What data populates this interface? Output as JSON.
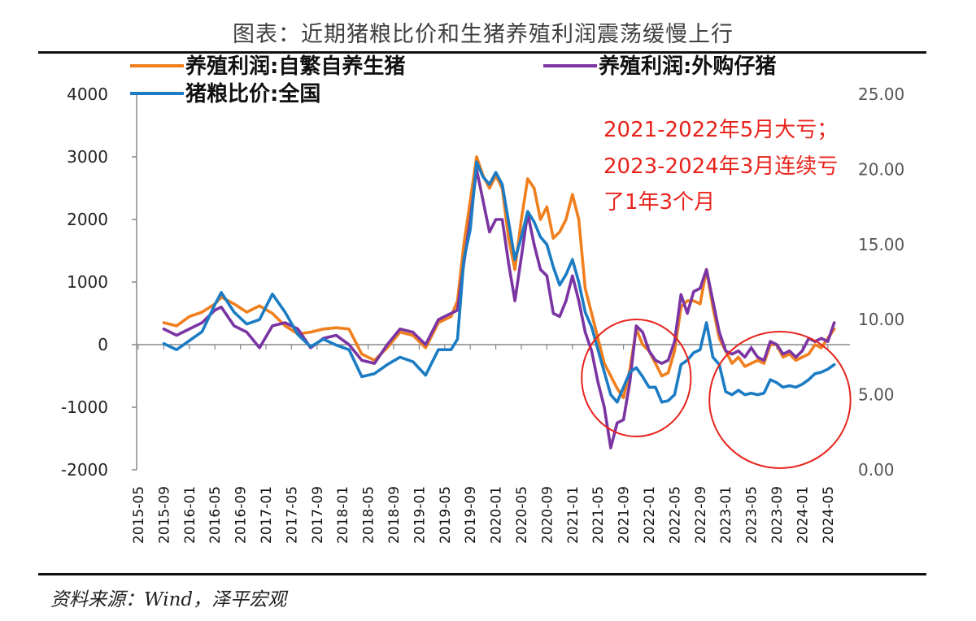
{
  "title": "图表：近期猪粮比价和生猪养殖利润震荡缓慢上行",
  "source": "资料来源：Wind，泽平宏观",
  "chart_data": {
    "type": "line",
    "title": "图表：近期猪粮比价和生猪养殖利润震荡缓慢上行",
    "xlabel": "",
    "ylabel": "",
    "x_tick_labels": [
      "2015-05",
      "2015-09",
      "2016-01",
      "2016-05",
      "2016-09",
      "2017-01",
      "2017-05",
      "2017-09",
      "2018-01",
      "2018-05",
      "2018-09",
      "2019-01",
      "2019-05",
      "2019-09",
      "2020-01",
      "2020-05",
      "2020-09",
      "2021-01",
      "2021-05",
      "2021-09",
      "2022-01",
      "2022-05",
      "2022-09",
      "2023-01",
      "2023-05",
      "2023-09",
      "2024-01",
      "2024-05"
    ],
    "y_left": {
      "ylim": [
        -2000,
        4000
      ],
      "ticks": [
        "-2000",
        "-1000",
        "0",
        "1000",
        "2000",
        "3000",
        "4000"
      ]
    },
    "y_right": {
      "ylim": [
        0,
        25
      ],
      "ticks": [
        "0.00",
        "5.00",
        "10.00",
        "15.00",
        "20.00",
        "25.00"
      ]
    },
    "grid": false,
    "legend_position": "top",
    "series": [
      {
        "name": "养殖利润:自繁自养生猪",
        "axis": "left",
        "color": "#f07f1e",
        "points": [
          [
            "2015-09",
            350
          ],
          [
            "2015-11",
            300
          ],
          [
            "2016-01",
            450
          ],
          [
            "2016-03",
            520
          ],
          [
            "2016-05",
            650
          ],
          [
            "2016-06",
            760
          ],
          [
            "2016-08",
            650
          ],
          [
            "2016-10",
            520
          ],
          [
            "2016-12",
            620
          ],
          [
            "2017-02",
            500
          ],
          [
            "2017-04",
            300
          ],
          [
            "2017-06",
            170
          ],
          [
            "2017-08",
            200
          ],
          [
            "2017-10",
            250
          ],
          [
            "2017-12",
            270
          ],
          [
            "2018-02",
            250
          ],
          [
            "2018-04",
            -150
          ],
          [
            "2018-06",
            -250
          ],
          [
            "2018-08",
            -50
          ],
          [
            "2018-10",
            200
          ],
          [
            "2018-12",
            150
          ],
          [
            "2019-02",
            -50
          ],
          [
            "2019-04",
            350
          ],
          [
            "2019-06",
            450
          ],
          [
            "2019-07",
            700
          ],
          [
            "2019-08",
            1600
          ],
          [
            "2019-09",
            2300
          ],
          [
            "2019-10",
            3000
          ],
          [
            "2019-11",
            2700
          ],
          [
            "2019-12",
            2500
          ],
          [
            "2020-01",
            2700
          ],
          [
            "2020-02",
            2500
          ],
          [
            "2020-03",
            1700
          ],
          [
            "2020-04",
            1200
          ],
          [
            "2020-05",
            2000
          ],
          [
            "2020-06",
            2650
          ],
          [
            "2020-07",
            2500
          ],
          [
            "2020-08",
            2000
          ],
          [
            "2020-09",
            2200
          ],
          [
            "2020-10",
            1700
          ],
          [
            "2020-11",
            1800
          ],
          [
            "2020-12",
            2000
          ],
          [
            "2021-01",
            2400
          ],
          [
            "2021-02",
            2000
          ],
          [
            "2021-03",
            900
          ],
          [
            "2021-04",
            500
          ],
          [
            "2021-05",
            100
          ],
          [
            "2021-06",
            -300
          ],
          [
            "2021-07",
            -500
          ],
          [
            "2021-08",
            -700
          ],
          [
            "2021-09",
            -850
          ],
          [
            "2021-10",
            -400
          ],
          [
            "2021-11",
            250
          ],
          [
            "2021-12",
            0
          ],
          [
            "2022-01",
            -100
          ],
          [
            "2022-02",
            -300
          ],
          [
            "2022-03",
            -500
          ],
          [
            "2022-04",
            -450
          ],
          [
            "2022-05",
            -100
          ],
          [
            "2022-06",
            600
          ],
          [
            "2022-07",
            700
          ],
          [
            "2022-08",
            700
          ],
          [
            "2022-09",
            650
          ],
          [
            "2022-10",
            1200
          ],
          [
            "2022-11",
            600
          ],
          [
            "2022-12",
            100
          ],
          [
            "2023-01",
            -100
          ],
          [
            "2023-02",
            -300
          ],
          [
            "2023-03",
            -200
          ],
          [
            "2023-04",
            -350
          ],
          [
            "2023-05",
            -300
          ],
          [
            "2023-06",
            -250
          ],
          [
            "2023-07",
            -300
          ],
          [
            "2023-08",
            0
          ],
          [
            "2023-09",
            0
          ],
          [
            "2023-10",
            -200
          ],
          [
            "2023-11",
            -150
          ],
          [
            "2023-12",
            -250
          ],
          [
            "2024-01",
            -200
          ],
          [
            "2024-02",
            -150
          ],
          [
            "2024-03",
            0
          ],
          [
            "2024-04",
            -50
          ],
          [
            "2024-05",
            100
          ],
          [
            "2024-06",
            250
          ]
        ]
      },
      {
        "name": "养殖利润:外购仔猪",
        "axis": "left",
        "color": "#7b35a3",
        "points": [
          [
            "2015-09",
            250
          ],
          [
            "2015-11",
            150
          ],
          [
            "2016-01",
            250
          ],
          [
            "2016-03",
            350
          ],
          [
            "2016-05",
            550
          ],
          [
            "2016-06",
            600
          ],
          [
            "2016-08",
            300
          ],
          [
            "2016-10",
            200
          ],
          [
            "2016-12",
            -50
          ],
          [
            "2017-02",
            300
          ],
          [
            "2017-04",
            350
          ],
          [
            "2017-06",
            250
          ],
          [
            "2017-08",
            -50
          ],
          [
            "2017-10",
            100
          ],
          [
            "2017-12",
            150
          ],
          [
            "2018-02",
            0
          ],
          [
            "2018-04",
            -250
          ],
          [
            "2018-06",
            -300
          ],
          [
            "2018-08",
            0
          ],
          [
            "2018-10",
            250
          ],
          [
            "2018-12",
            200
          ],
          [
            "2019-02",
            0
          ],
          [
            "2019-04",
            400
          ],
          [
            "2019-06",
            500
          ],
          [
            "2019-07",
            550
          ],
          [
            "2019-08",
            1300
          ],
          [
            "2019-09",
            2000
          ],
          [
            "2019-10",
            2800
          ],
          [
            "2019-11",
            2300
          ],
          [
            "2019-12",
            1800
          ],
          [
            "2020-01",
            2000
          ],
          [
            "2020-02",
            2000
          ],
          [
            "2020-03",
            1300
          ],
          [
            "2020-04",
            700
          ],
          [
            "2020-05",
            1400
          ],
          [
            "2020-06",
            2100
          ],
          [
            "2020-07",
            1600
          ],
          [
            "2020-08",
            1200
          ],
          [
            "2020-09",
            1100
          ],
          [
            "2020-10",
            500
          ],
          [
            "2020-11",
            450
          ],
          [
            "2020-12",
            700
          ],
          [
            "2021-01",
            1100
          ],
          [
            "2021-02",
            700
          ],
          [
            "2021-03",
            200
          ],
          [
            "2021-04",
            -100
          ],
          [
            "2021-05",
            -600
          ],
          [
            "2021-06",
            -1000
          ],
          [
            "2021-07",
            -1650
          ],
          [
            "2021-08",
            -1250
          ],
          [
            "2021-09",
            -1200
          ],
          [
            "2021-10",
            -600
          ],
          [
            "2021-11",
            300
          ],
          [
            "2021-12",
            200
          ],
          [
            "2022-01",
            -100
          ],
          [
            "2022-02",
            -250
          ],
          [
            "2022-03",
            -300
          ],
          [
            "2022-04",
            -250
          ],
          [
            "2022-05",
            50
          ],
          [
            "2022-06",
            800
          ],
          [
            "2022-07",
            500
          ],
          [
            "2022-08",
            850
          ],
          [
            "2022-09",
            900
          ],
          [
            "2022-10",
            1200
          ],
          [
            "2022-11",
            700
          ],
          [
            "2022-12",
            200
          ],
          [
            "2023-01",
            -100
          ],
          [
            "2023-02",
            -150
          ],
          [
            "2023-03",
            -100
          ],
          [
            "2023-04",
            -200
          ],
          [
            "2023-05",
            -50
          ],
          [
            "2023-06",
            -200
          ],
          [
            "2023-07",
            -250
          ],
          [
            "2023-08",
            50
          ],
          [
            "2023-09",
            0
          ],
          [
            "2023-10",
            -150
          ],
          [
            "2023-11",
            -100
          ],
          [
            "2023-12",
            -200
          ],
          [
            "2024-01",
            -100
          ],
          [
            "2024-02",
            100
          ],
          [
            "2024-03",
            50
          ],
          [
            "2024-04",
            100
          ],
          [
            "2024-05",
            50
          ],
          [
            "2024-06",
            350
          ]
        ]
      },
      {
        "name": "猪粮比价:全国",
        "axis": "right",
        "color": "#1c7cc3",
        "points": [
          [
            "2015-09",
            8.4
          ],
          [
            "2015-11",
            8.0
          ],
          [
            "2016-01",
            8.6
          ],
          [
            "2016-03",
            9.2
          ],
          [
            "2016-05",
            11.0
          ],
          [
            "2016-06",
            11.8
          ],
          [
            "2016-08",
            10.5
          ],
          [
            "2016-10",
            9.7
          ],
          [
            "2016-12",
            10.0
          ],
          [
            "2017-02",
            11.7
          ],
          [
            "2017-04",
            10.5
          ],
          [
            "2017-06",
            9.0
          ],
          [
            "2017-08",
            8.2
          ],
          [
            "2017-10",
            8.7
          ],
          [
            "2017-12",
            8.3
          ],
          [
            "2018-02",
            8.0
          ],
          [
            "2018-04",
            6.2
          ],
          [
            "2018-06",
            6.4
          ],
          [
            "2018-08",
            7.0
          ],
          [
            "2018-10",
            7.5
          ],
          [
            "2018-12",
            7.2
          ],
          [
            "2019-02",
            6.3
          ],
          [
            "2019-04",
            8.0
          ],
          [
            "2019-06",
            8.0
          ],
          [
            "2019-07",
            8.7
          ],
          [
            "2019-08",
            14.0
          ],
          [
            "2019-09",
            16.0
          ],
          [
            "2019-10",
            20.5
          ],
          [
            "2019-11",
            19.5
          ],
          [
            "2019-12",
            19.0
          ],
          [
            "2020-01",
            19.8
          ],
          [
            "2020-02",
            19.0
          ],
          [
            "2020-03",
            16.5
          ],
          [
            "2020-04",
            14.0
          ],
          [
            "2020-05",
            15.5
          ],
          [
            "2020-06",
            17.2
          ],
          [
            "2020-07",
            16.5
          ],
          [
            "2020-08",
            15.5
          ],
          [
            "2020-09",
            15.0
          ],
          [
            "2020-10",
            13.5
          ],
          [
            "2020-11",
            12.3
          ],
          [
            "2020-12",
            13.0
          ],
          [
            "2021-01",
            14.0
          ],
          [
            "2021-02",
            12.5
          ],
          [
            "2021-03",
            10.5
          ],
          [
            "2021-04",
            9.5
          ],
          [
            "2021-05",
            8.0
          ],
          [
            "2021-06",
            6.5
          ],
          [
            "2021-07",
            5.0
          ],
          [
            "2021-08",
            4.5
          ],
          [
            "2021-09",
            5.5
          ],
          [
            "2021-10",
            6.5
          ],
          [
            "2021-11",
            6.8
          ],
          [
            "2021-12",
            6.2
          ],
          [
            "2022-01",
            5.5
          ],
          [
            "2022-02",
            5.5
          ],
          [
            "2022-03",
            4.5
          ],
          [
            "2022-04",
            4.6
          ],
          [
            "2022-05",
            5.0
          ],
          [
            "2022-06",
            7.0
          ],
          [
            "2022-07",
            7.3
          ],
          [
            "2022-08",
            7.8
          ],
          [
            "2022-09",
            8.0
          ],
          [
            "2022-10",
            9.8
          ],
          [
            "2022-11",
            7.5
          ],
          [
            "2022-12",
            7.0
          ],
          [
            "2023-01",
            5.2
          ],
          [
            "2023-02",
            5.0
          ],
          [
            "2023-03",
            5.3
          ],
          [
            "2023-04",
            5.0
          ],
          [
            "2023-05",
            5.1
          ],
          [
            "2023-06",
            5.0
          ],
          [
            "2023-07",
            5.1
          ],
          [
            "2023-08",
            6.0
          ],
          [
            "2023-09",
            5.8
          ],
          [
            "2023-10",
            5.5
          ],
          [
            "2023-11",
            5.6
          ],
          [
            "2023-12",
            5.5
          ],
          [
            "2024-01",
            5.7
          ],
          [
            "2024-02",
            6.0
          ],
          [
            "2024-03",
            6.4
          ],
          [
            "2024-04",
            6.5
          ],
          [
            "2024-05",
            6.7
          ],
          [
            "2024-06",
            7.0
          ]
        ]
      }
    ],
    "annotations": [
      {
        "text": "2021-2022年5月大亏；",
        "color": "#e8231c"
      },
      {
        "text": "2023-2024年3月连续亏",
        "color": "#e8231c"
      },
      {
        "text": "了1年3个月",
        "color": "#e8231c"
      }
    ],
    "highlight_circles": [
      {
        "x_from": "2021-05",
        "x_to": "2022-05",
        "color": "#e8231c"
      },
      {
        "x_from": "2023-01",
        "x_to": "2024-06",
        "color": "#e8231c"
      }
    ]
  }
}
